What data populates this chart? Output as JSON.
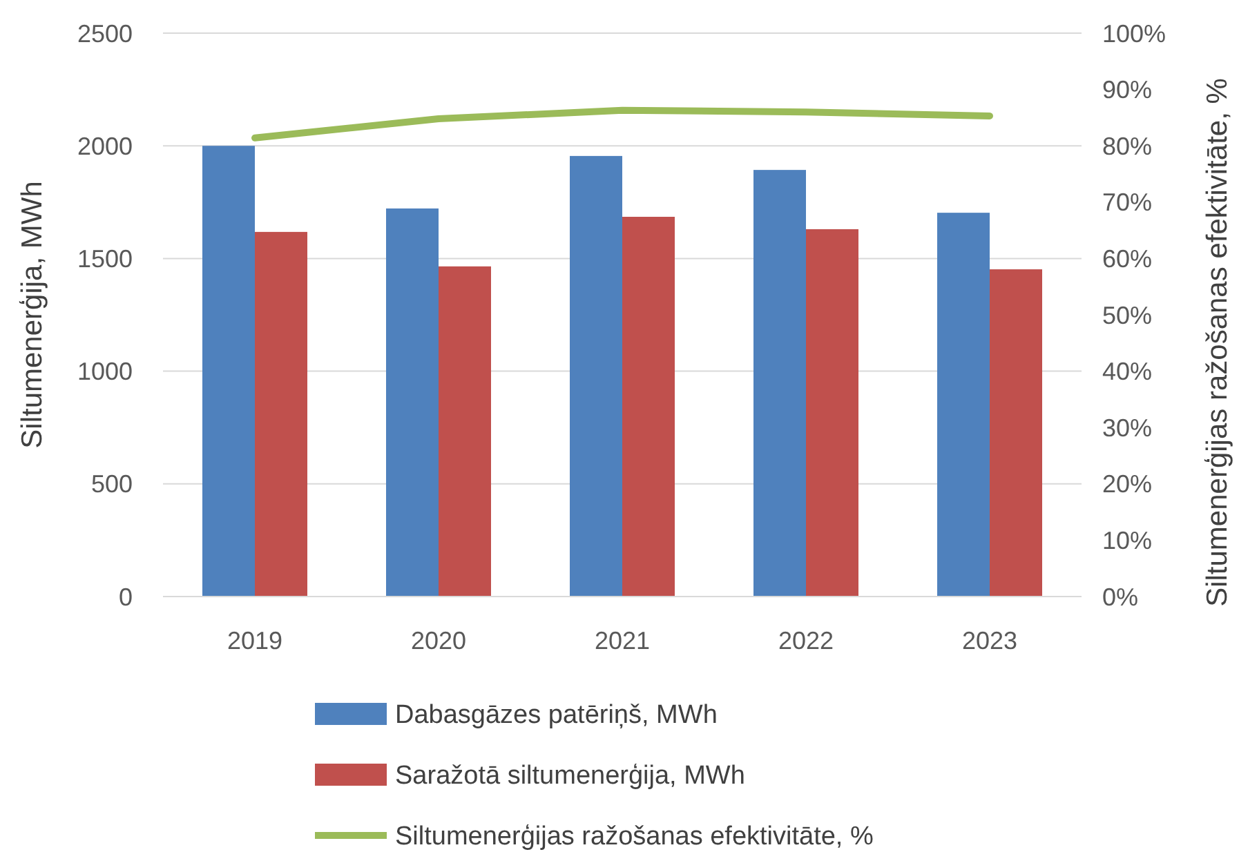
{
  "chart_data": {
    "type": "bar",
    "ylabel": "Siltumenerģija, MWh",
    "y2label": "Siltumenerģijas ražošanas efektivitāte, %",
    "categories": [
      "2019",
      "2020",
      "2021",
      "2022",
      "2023"
    ],
    "series": [
      {
        "name": "Dabasgāzes patēriņš, MWh",
        "color": "#4f81bd",
        "values": [
          2000,
          1722,
          1955,
          1893,
          1703
        ]
      },
      {
        "name": "Saražotā siltumenerģija, MWh",
        "color": "#c0504d",
        "values": [
          1618,
          1465,
          1685,
          1630,
          1452
        ]
      },
      {
        "name": "Siltumenerģijas ražošanas efektivitāte, %",
        "type": "line",
        "axis": "y2",
        "color": "#9bbb59",
        "values": [
          81.4,
          84.8,
          86.3,
          86.0,
          85.3
        ]
      }
    ],
    "ylim": [
      0,
      2500
    ],
    "yticks": [
      0,
      500,
      1000,
      1500,
      2000,
      2500
    ],
    "y2lim": [
      0,
      100
    ],
    "y2ticks": [
      {
        "value": 0,
        "label": "0%"
      },
      {
        "value": 10,
        "label": "10%"
      },
      {
        "value": 20,
        "label": "20%"
      },
      {
        "value": 30,
        "label": "30%"
      },
      {
        "value": 40,
        "label": "40%"
      },
      {
        "value": 50,
        "label": "50%"
      },
      {
        "value": 60,
        "label": "60%"
      },
      {
        "value": 70,
        "label": "70%"
      },
      {
        "value": 80,
        "label": "80%"
      },
      {
        "value": 90,
        "label": "90%"
      },
      {
        "value": 100,
        "label": "100%"
      }
    ],
    "grid": "y",
    "legend": "bottom"
  }
}
